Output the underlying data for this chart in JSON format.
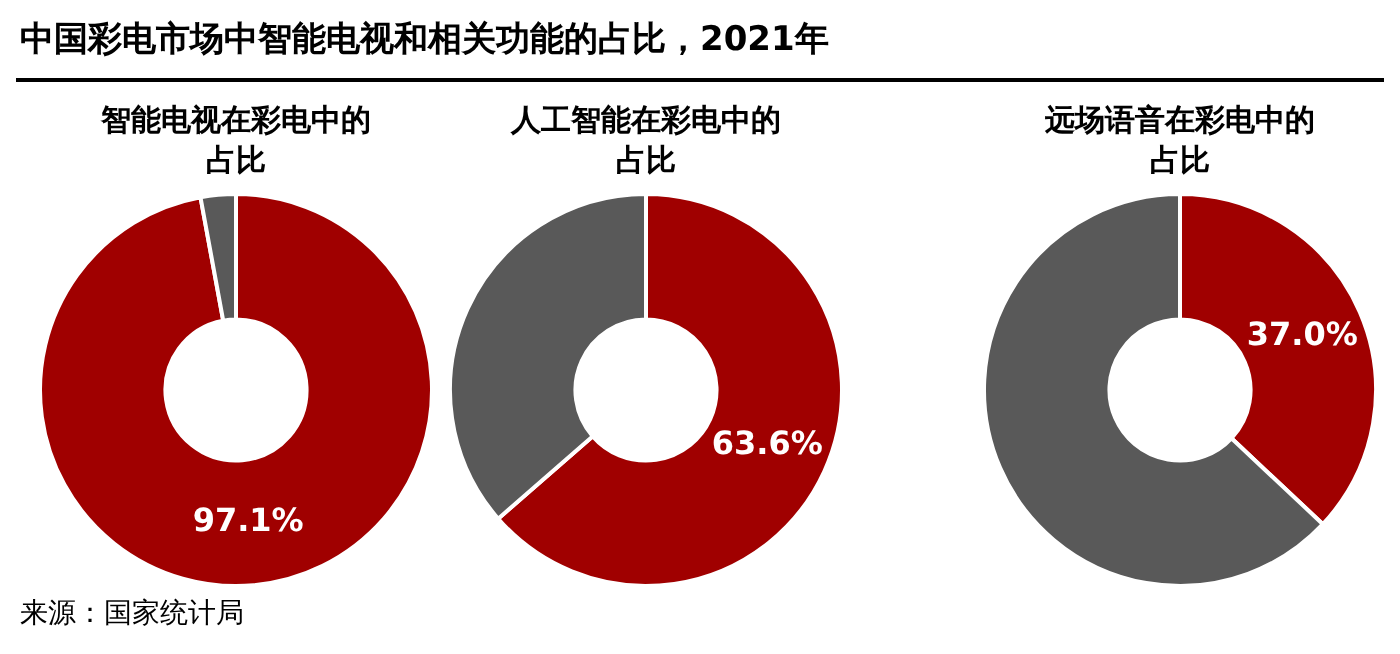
{
  "chart_data": [
    {
      "type": "other",
      "title": "中国彩电市场中智能电视和相关功能的占比，2021年",
      "annotations": [
        "来源：国家统计局"
      ]
    },
    {
      "type": "donut",
      "title": "智能电视在彩电中的占比",
      "categories": [
        null,
        null
      ],
      "values": [
        97.1,
        2.9
      ],
      "colors": [
        "#a00000",
        "#595959"
      ],
      "value_labels": [
        "97.1%",
        null
      ]
    },
    {
      "type": "donut",
      "title": "人工智能在彩电中的占比",
      "categories": [
        null,
        null
      ],
      "values": [
        63.6,
        36.4
      ],
      "colors": [
        "#a00000",
        "#595959"
      ],
      "value_labels": [
        "63.6%",
        null
      ]
    },
    {
      "type": "donut",
      "title": "远场语音在彩电中的占比",
      "categories": [
        null,
        null
      ],
      "values": [
        37.0,
        63.0
      ],
      "colors": [
        "#a00000",
        "#595959"
      ],
      "value_labels": [
        "37.0%",
        null
      ]
    }
  ]
}
